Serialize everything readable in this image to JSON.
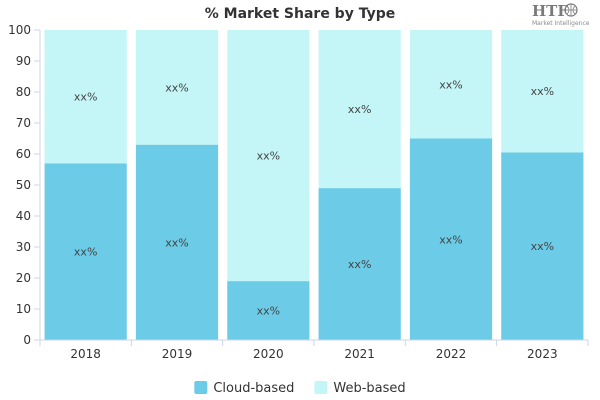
{
  "chart_data": {
    "type": "bar",
    "stacked": true,
    "title": "% Market Share by Type",
    "categories": [
      "2018",
      "2019",
      "2020",
      "2021",
      "2022",
      "2023"
    ],
    "series": [
      {
        "name": "Cloud-based",
        "color": "#6ccbe6",
        "values": [
          57,
          63,
          19,
          49,
          65,
          60.5
        ],
        "labels": [
          "xx%",
          "xx%",
          "xx%",
          "xx%",
          "xx%",
          "xx%"
        ]
      },
      {
        "name": "Web-based",
        "color": "#c4f5f7",
        "values": [
          43,
          37,
          81,
          51,
          35,
          39.5
        ],
        "labels": [
          "xx%",
          "xx%",
          "xx%",
          "xx%",
          "xx%",
          "xx%"
        ]
      }
    ],
    "ylim": [
      0,
      100
    ],
    "yticks": [
      "0",
      "10",
      "20",
      "30",
      "40",
      "50",
      "60",
      "70",
      "80",
      "90",
      "100"
    ],
    "legend_position": "bottom-center",
    "grid": false
  },
  "logo": {
    "text": "HTF",
    "subtext": "Market Intelligence"
  }
}
